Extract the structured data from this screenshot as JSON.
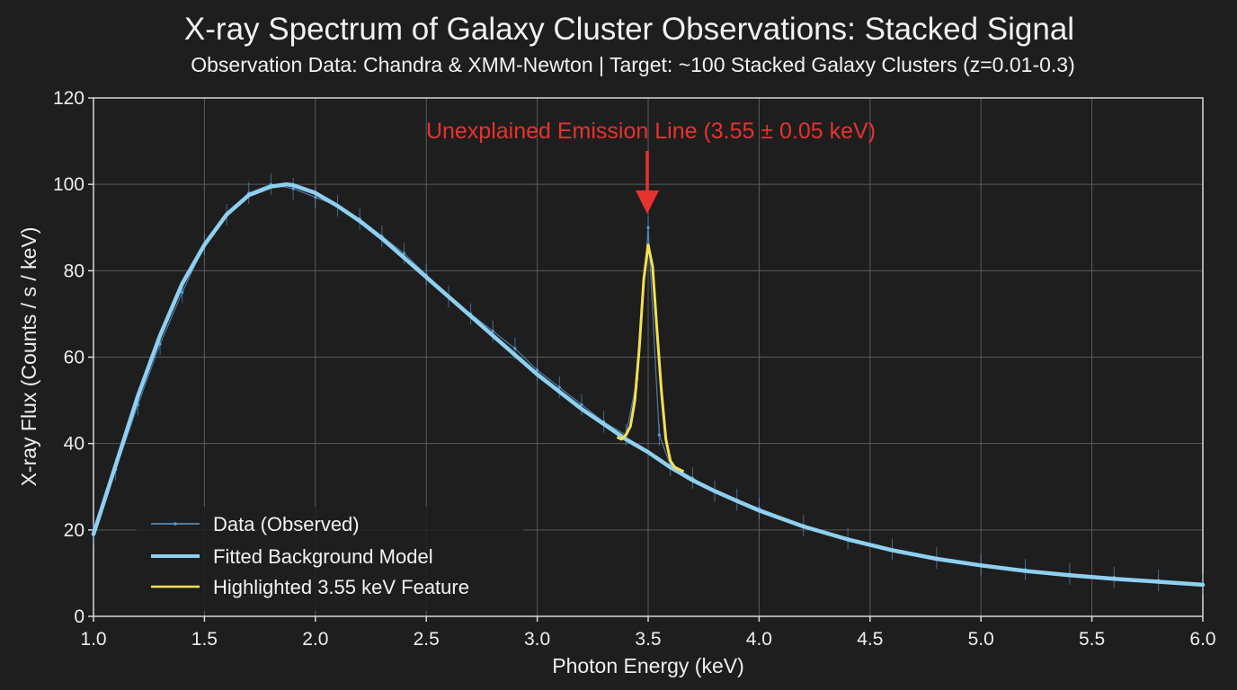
{
  "chart_data": {
    "type": "line",
    "title": "X-ray Spectrum of Galaxy Cluster Observations: Stacked Signal",
    "subtitle": "Observation Data: Chandra & XMM-Newton | Target: ~100 Stacked Galaxy Clusters (z=0.01-0.3)",
    "xlabel": "Photon Energy (keV)",
    "ylabel": "X-ray Flux (Counts / s / keV)",
    "xlim": [
      1.0,
      6.0
    ],
    "ylim": [
      0,
      120
    ],
    "xticks": [
      "1.0",
      "1.5",
      "2.0",
      "2.5",
      "3.0",
      "3.5",
      "4.0",
      "4.5",
      "5.0",
      "5.5",
      "6.0"
    ],
    "yticks": [
      "0",
      "20",
      "40",
      "60",
      "80",
      "100",
      "120"
    ],
    "grid": true,
    "legend_position": "lower-left",
    "series": [
      {
        "name": "Data (Observed)",
        "style": "scatter-errorbar",
        "color": "#5b9bd5",
        "x": [
          1.0,
          1.1,
          1.2,
          1.3,
          1.4,
          1.5,
          1.6,
          1.7,
          1.8,
          1.9,
          2.0,
          2.1,
          2.2,
          2.3,
          2.4,
          2.5,
          2.6,
          2.7,
          2.8,
          2.9,
          3.0,
          3.1,
          3.2,
          3.3,
          3.4,
          3.45,
          3.5,
          3.55,
          3.6,
          3.7,
          3.8,
          3.9,
          4.0,
          4.2,
          4.4,
          4.6,
          4.8,
          5.0,
          5.2,
          5.4,
          5.6,
          5.8,
          6.0
        ],
        "y": [
          19,
          34,
          49,
          63,
          75,
          86,
          93,
          98,
          100,
          99,
          97,
          95,
          92,
          88,
          84,
          79,
          74,
          70,
          66,
          62,
          57,
          53,
          49,
          45,
          42,
          55,
          90,
          42,
          35,
          32,
          29,
          27,
          25,
          21,
          18,
          15.5,
          13.5,
          12,
          10.8,
          9.8,
          9,
          8.3,
          7.5
        ]
      },
      {
        "name": "Fitted Background Model",
        "style": "line",
        "color": "#8fd0f0",
        "x": [
          1.0,
          1.1,
          1.2,
          1.3,
          1.4,
          1.5,
          1.6,
          1.7,
          1.8,
          1.87,
          1.9,
          2.0,
          2.1,
          2.2,
          2.3,
          2.4,
          2.5,
          2.6,
          2.7,
          2.8,
          2.9,
          3.0,
          3.1,
          3.2,
          3.3,
          3.4,
          3.5,
          3.6,
          3.7,
          3.8,
          3.9,
          4.0,
          4.2,
          4.4,
          4.6,
          4.8,
          5.0,
          5.2,
          5.4,
          5.6,
          5.8,
          6.0
        ],
        "y": [
          19,
          35,
          51,
          65,
          77,
          86,
          93,
          97.5,
          99.5,
          100,
          99.8,
          98,
          95,
          91.5,
          87.5,
          83,
          78.5,
          74,
          69.5,
          65,
          60.5,
          56,
          52,
          48,
          44.5,
          41,
          38,
          34.5,
          31.5,
          29,
          26.7,
          24.5,
          20.8,
          17.8,
          15.3,
          13.3,
          11.8,
          10.5,
          9.5,
          8.7,
          8,
          7.3
        ]
      },
      {
        "name": "Highlighted 3.55 keV Feature",
        "style": "line",
        "color": "#f5e050",
        "x": [
          3.36,
          3.38,
          3.4,
          3.42,
          3.44,
          3.46,
          3.48,
          3.5,
          3.52,
          3.54,
          3.56,
          3.58,
          3.6,
          3.62,
          3.64,
          3.66
        ],
        "y": [
          41.5,
          41,
          42,
          44,
          50,
          62,
          78,
          86,
          81,
          66,
          52,
          41,
          36,
          34.5,
          34,
          33.5
        ]
      }
    ],
    "annotations": [
      {
        "text": "Unexplained Emission Line (3.55 ± 0.05 keV)",
        "x": 3.5,
        "y": 95,
        "color": "#e8322e"
      }
    ]
  }
}
